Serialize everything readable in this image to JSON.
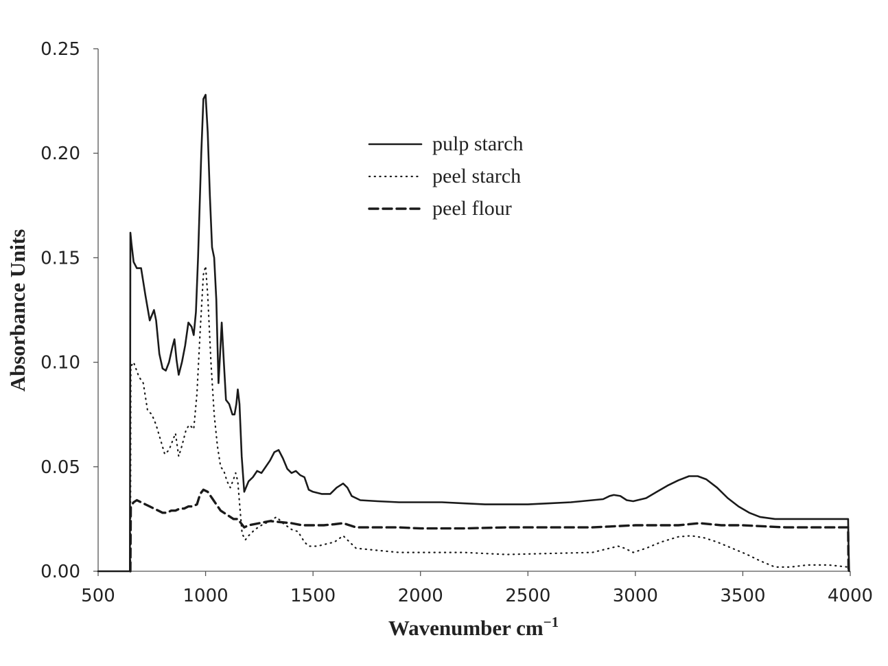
{
  "chart_data": {
    "type": "line",
    "xlabel": "Wavenumber cm",
    "xlabel_superscript": "−1",
    "ylabel": "Absorbance Units",
    "xlim": [
      500,
      4000
    ],
    "ylim": [
      0,
      0.25
    ],
    "xticks": [
      "500",
      "1000",
      "1500",
      "2000",
      "2500",
      "3000",
      "3500",
      "4000"
    ],
    "yticks": [
      "0.00",
      "0.05",
      "0.10",
      "0.15",
      "0.20",
      "0.25"
    ],
    "grid": false,
    "legend_position": "top-center",
    "series": [
      {
        "name": "pulp starch",
        "line_style": "solid",
        "color": "#1a1a1a",
        "points": [
          [
            500,
            0
          ],
          [
            648,
            0
          ],
          [
            650,
            0.162
          ],
          [
            655,
            0.157
          ],
          [
            665,
            0.148
          ],
          [
            680,
            0.145
          ],
          [
            700,
            0.145
          ],
          [
            720,
            0.132
          ],
          [
            740,
            0.12
          ],
          [
            760,
            0.125
          ],
          [
            770,
            0.12
          ],
          [
            785,
            0.104
          ],
          [
            800,
            0.097
          ],
          [
            815,
            0.096
          ],
          [
            830,
            0.1
          ],
          [
            845,
            0.107
          ],
          [
            855,
            0.111
          ],
          [
            865,
            0.101
          ],
          [
            875,
            0.094
          ],
          [
            890,
            0.1
          ],
          [
            905,
            0.108
          ],
          [
            920,
            0.119
          ],
          [
            935,
            0.117
          ],
          [
            945,
            0.113
          ],
          [
            955,
            0.124
          ],
          [
            965,
            0.15
          ],
          [
            980,
            0.2
          ],
          [
            990,
            0.226
          ],
          [
            1000,
            0.228
          ],
          [
            1010,
            0.21
          ],
          [
            1020,
            0.18
          ],
          [
            1030,
            0.155
          ],
          [
            1040,
            0.15
          ],
          [
            1050,
            0.13
          ],
          [
            1060,
            0.09
          ],
          [
            1068,
            0.105
          ],
          [
            1075,
            0.119
          ],
          [
            1085,
            0.1
          ],
          [
            1095,
            0.082
          ],
          [
            1110,
            0.08
          ],
          [
            1125,
            0.075
          ],
          [
            1135,
            0.075
          ],
          [
            1143,
            0.08
          ],
          [
            1150,
            0.087
          ],
          [
            1158,
            0.08
          ],
          [
            1168,
            0.055
          ],
          [
            1180,
            0.038
          ],
          [
            1200,
            0.043
          ],
          [
            1220,
            0.045
          ],
          [
            1240,
            0.048
          ],
          [
            1260,
            0.047
          ],
          [
            1280,
            0.05
          ],
          [
            1300,
            0.053
          ],
          [
            1320,
            0.057
          ],
          [
            1340,
            0.058
          ],
          [
            1360,
            0.054
          ],
          [
            1380,
            0.049
          ],
          [
            1400,
            0.047
          ],
          [
            1420,
            0.048
          ],
          [
            1440,
            0.046
          ],
          [
            1460,
            0.045
          ],
          [
            1480,
            0.039
          ],
          [
            1500,
            0.038
          ],
          [
            1540,
            0.037
          ],
          [
            1580,
            0.037
          ],
          [
            1610,
            0.04
          ],
          [
            1640,
            0.042
          ],
          [
            1660,
            0.04
          ],
          [
            1680,
            0.036
          ],
          [
            1720,
            0.034
          ],
          [
            1800,
            0.0335
          ],
          [
            1900,
            0.033
          ],
          [
            2000,
            0.033
          ],
          [
            2100,
            0.033
          ],
          [
            2200,
            0.0325
          ],
          [
            2300,
            0.032
          ],
          [
            2400,
            0.032
          ],
          [
            2500,
            0.032
          ],
          [
            2600,
            0.0325
          ],
          [
            2700,
            0.033
          ],
          [
            2800,
            0.034
          ],
          [
            2850,
            0.0345
          ],
          [
            2880,
            0.036
          ],
          [
            2900,
            0.0365
          ],
          [
            2930,
            0.036
          ],
          [
            2960,
            0.034
          ],
          [
            2990,
            0.0335
          ],
          [
            3050,
            0.035
          ],
          [
            3100,
            0.038
          ],
          [
            3150,
            0.041
          ],
          [
            3200,
            0.0435
          ],
          [
            3250,
            0.0455
          ],
          [
            3290,
            0.0455
          ],
          [
            3330,
            0.044
          ],
          [
            3380,
            0.04
          ],
          [
            3430,
            0.035
          ],
          [
            3480,
            0.031
          ],
          [
            3530,
            0.028
          ],
          [
            3580,
            0.026
          ],
          [
            3650,
            0.025
          ],
          [
            3750,
            0.025
          ],
          [
            3850,
            0.025
          ],
          [
            3950,
            0.025
          ],
          [
            3990,
            0.025
          ],
          [
            3992,
            0.012
          ],
          [
            3995,
            0.0
          ]
        ]
      },
      {
        "name": "peel starch",
        "line_style": "dotted",
        "color": "#1a1a1a",
        "points": [
          [
            650,
            0.0
          ],
          [
            652,
            0.098
          ],
          [
            665,
            0.1
          ],
          [
            690,
            0.093
          ],
          [
            710,
            0.09
          ],
          [
            730,
            0.077
          ],
          [
            750,
            0.075
          ],
          [
            770,
            0.07
          ],
          [
            790,
            0.063
          ],
          [
            810,
            0.056
          ],
          [
            830,
            0.058
          ],
          [
            845,
            0.062
          ],
          [
            860,
            0.066
          ],
          [
            875,
            0.055
          ],
          [
            890,
            0.06
          ],
          [
            910,
            0.068
          ],
          [
            925,
            0.07
          ],
          [
            945,
            0.068
          ],
          [
            960,
            0.085
          ],
          [
            975,
            0.115
          ],
          [
            990,
            0.142
          ],
          [
            1000,
            0.146
          ],
          [
            1010,
            0.132
          ],
          [
            1025,
            0.1
          ],
          [
            1040,
            0.075
          ],
          [
            1055,
            0.06
          ],
          [
            1070,
            0.05
          ],
          [
            1085,
            0.048
          ],
          [
            1100,
            0.043
          ],
          [
            1115,
            0.04
          ],
          [
            1130,
            0.044
          ],
          [
            1140,
            0.047
          ],
          [
            1150,
            0.043
          ],
          [
            1160,
            0.03
          ],
          [
            1170,
            0.018
          ],
          [
            1185,
            0.015
          ],
          [
            1200,
            0.017
          ],
          [
            1230,
            0.02
          ],
          [
            1260,
            0.022
          ],
          [
            1300,
            0.024
          ],
          [
            1330,
            0.026
          ],
          [
            1360,
            0.023
          ],
          [
            1400,
            0.02
          ],
          [
            1430,
            0.019
          ],
          [
            1460,
            0.014
          ],
          [
            1480,
            0.012
          ],
          [
            1520,
            0.012
          ],
          [
            1560,
            0.013
          ],
          [
            1600,
            0.014
          ],
          [
            1640,
            0.017
          ],
          [
            1660,
            0.015
          ],
          [
            1700,
            0.011
          ],
          [
            1800,
            0.01
          ],
          [
            1900,
            0.009
          ],
          [
            2000,
            0.009
          ],
          [
            2200,
            0.009
          ],
          [
            2400,
            0.008
          ],
          [
            2600,
            0.0085
          ],
          [
            2800,
            0.009
          ],
          [
            2880,
            0.011
          ],
          [
            2920,
            0.012
          ],
          [
            2950,
            0.011
          ],
          [
            2990,
            0.009
          ],
          [
            3050,
            0.011
          ],
          [
            3120,
            0.014
          ],
          [
            3200,
            0.0165
          ],
          [
            3260,
            0.017
          ],
          [
            3320,
            0.016
          ],
          [
            3380,
            0.014
          ],
          [
            3450,
            0.011
          ],
          [
            3520,
            0.008
          ],
          [
            3580,
            0.005
          ],
          [
            3650,
            0.002
          ],
          [
            3720,
            0.002
          ],
          [
            3800,
            0.003
          ],
          [
            3900,
            0.003
          ],
          [
            3990,
            0.002
          ],
          [
            3992,
            0.0
          ]
        ]
      },
      {
        "name": "peel flour",
        "line_style": "dashed",
        "color": "#1a1a1a",
        "points": [
          [
            650,
            0.0
          ],
          [
            652,
            0.031
          ],
          [
            665,
            0.033
          ],
          [
            680,
            0.034
          ],
          [
            700,
            0.033
          ],
          [
            720,
            0.032
          ],
          [
            740,
            0.031
          ],
          [
            760,
            0.03
          ],
          [
            780,
            0.029
          ],
          [
            800,
            0.028
          ],
          [
            820,
            0.028
          ],
          [
            840,
            0.029
          ],
          [
            860,
            0.029
          ],
          [
            880,
            0.03
          ],
          [
            900,
            0.03
          ],
          [
            920,
            0.031
          ],
          [
            940,
            0.031
          ],
          [
            960,
            0.032
          ],
          [
            975,
            0.037
          ],
          [
            990,
            0.039
          ],
          [
            1010,
            0.038
          ],
          [
            1030,
            0.035
          ],
          [
            1050,
            0.032
          ],
          [
            1070,
            0.029
          ],
          [
            1100,
            0.027
          ],
          [
            1130,
            0.025
          ],
          [
            1150,
            0.025
          ],
          [
            1165,
            0.023
          ],
          [
            1180,
            0.021
          ],
          [
            1200,
            0.022
          ],
          [
            1250,
            0.023
          ],
          [
            1300,
            0.024
          ],
          [
            1350,
            0.0235
          ],
          [
            1400,
            0.023
          ],
          [
            1450,
            0.022
          ],
          [
            1500,
            0.022
          ],
          [
            1550,
            0.022
          ],
          [
            1600,
            0.0225
          ],
          [
            1640,
            0.023
          ],
          [
            1700,
            0.021
          ],
          [
            1800,
            0.021
          ],
          [
            1900,
            0.021
          ],
          [
            2000,
            0.0205
          ],
          [
            2200,
            0.0205
          ],
          [
            2400,
            0.021
          ],
          [
            2600,
            0.021
          ],
          [
            2800,
            0.021
          ],
          [
            3000,
            0.022
          ],
          [
            3200,
            0.022
          ],
          [
            3300,
            0.023
          ],
          [
            3400,
            0.022
          ],
          [
            3500,
            0.022
          ],
          [
            3600,
            0.0215
          ],
          [
            3700,
            0.021
          ],
          [
            3800,
            0.021
          ],
          [
            3900,
            0.021
          ],
          [
            3990,
            0.021
          ],
          [
            3992,
            0.0
          ]
        ]
      }
    ]
  }
}
